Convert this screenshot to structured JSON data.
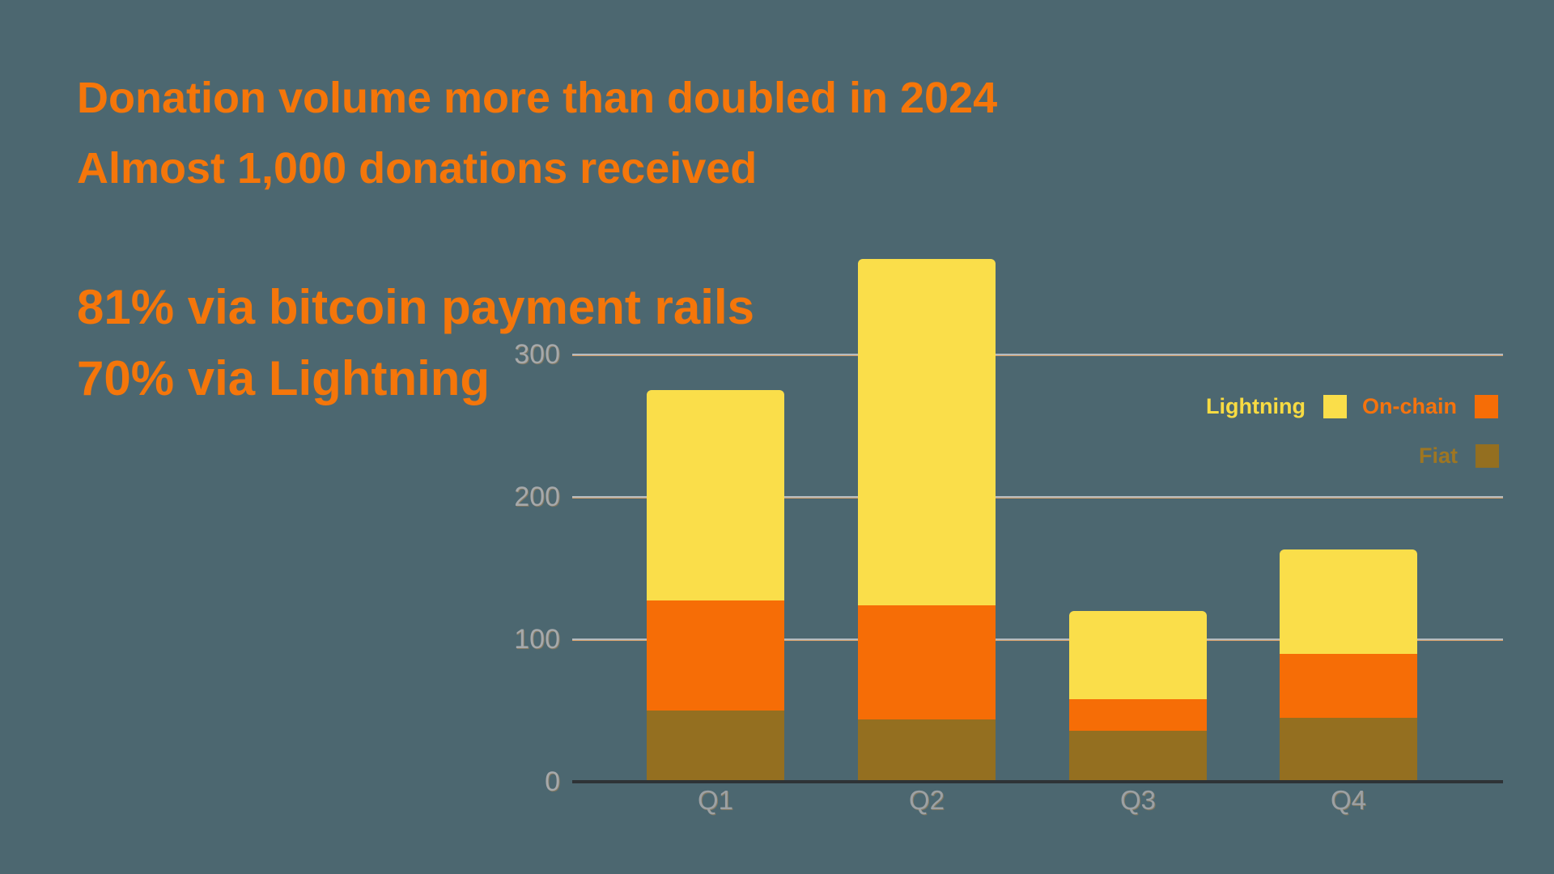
{
  "headlines": {
    "line1": "Donation volume more than doubled in 2024",
    "line2": "Almost 1,000 donations received",
    "line3": "81% via bitcoin payment rails",
    "line4": "70% via Lightning"
  },
  "chart_data": {
    "type": "bar",
    "stacked": true,
    "title": "Donation volume more than doubled in 2024",
    "subtitle": "Almost 1,000 donations received",
    "annotations": [
      "81% via bitcoin payment rails",
      "70% via Lightning"
    ],
    "categories": [
      "Q1",
      "Q2",
      "Q3",
      "Q4"
    ],
    "series": [
      {
        "name": "Fiat",
        "color": "#946F20",
        "values": [
          50,
          44,
          36,
          45
        ]
      },
      {
        "name": "On-chain",
        "color": "#F66D06",
        "values": [
          77,
          80,
          22,
          45
        ]
      },
      {
        "name": "Lightning",
        "color": "#FADE4A",
        "values": [
          148,
          243,
          62,
          73
        ]
      }
    ],
    "totals": [
      275,
      367,
      120,
      163
    ],
    "xlabel": "",
    "ylabel": "",
    "y_ticks": [
      0,
      100,
      200,
      300
    ],
    "ylim": [
      0,
      300
    ],
    "grid": "horizontal",
    "legend_position": "right",
    "legend_order": [
      "Lightning",
      "On-chain",
      "Fiat"
    ]
  },
  "legend": {
    "items": [
      {
        "label": "Lightning",
        "color": "#FADE4A",
        "text_color": "#F8DB42",
        "row": 0
      },
      {
        "label": "On-chain",
        "color": "#F66D06",
        "text_color": "#F5730D",
        "row": 0
      },
      {
        "label": "Fiat",
        "color": "#946F20",
        "text_color": "#9E7622",
        "row": 1
      }
    ]
  },
  "colors": {
    "background": "#4C6770",
    "headline": "#F5760A",
    "gridline": "#B4BBBF",
    "gridline_accent": "#D59F69",
    "axis": "#2E3336",
    "tick_label": "#A6A9AB"
  }
}
